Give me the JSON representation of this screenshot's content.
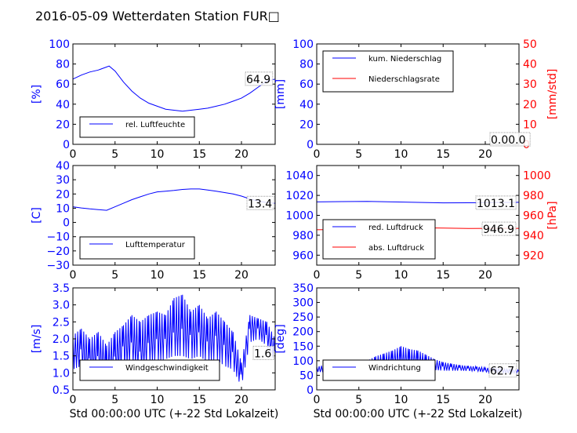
{
  "title": "2016-05-09 Wetterdaten Station FUR□",
  "xlabel": "Std 00:00:00 UTC (+-22 Std Lokalzeit)",
  "colors": {
    "primary": "#0000ff",
    "secondary": "#ff0000",
    "light": "#8080ff"
  },
  "chart_data": [
    {
      "type": "line",
      "ylabel": "[%]",
      "ylim": [
        0,
        100
      ],
      "yticks": [
        "0",
        "20",
        "40",
        "60",
        "80",
        "100"
      ],
      "xlim": [
        0,
        24
      ],
      "xticks": [
        "0",
        "5",
        "10",
        "15",
        "20"
      ],
      "last_value_label": "64.9",
      "legend": [
        "rel. Luftfeuchte"
      ],
      "legend_position": "lower-left",
      "series": [
        {
          "name": "rel. Luftfeuchte",
          "color": "#0000ff",
          "x": [
            0,
            1,
            2,
            3,
            4,
            4.3,
            5,
            6,
            7,
            8,
            9,
            10,
            11,
            12,
            13,
            14,
            15,
            16,
            17,
            18,
            19,
            20,
            21,
            22,
            23,
            24
          ],
          "y": [
            65,
            69,
            72,
            74,
            77,
            78,
            73,
            62,
            53,
            46,
            41,
            38,
            35,
            34,
            33,
            34,
            35,
            36,
            38,
            40,
            43,
            46,
            51,
            57,
            63,
            65
          ]
        }
      ]
    },
    {
      "type": "line",
      "ylabel": "[mm]",
      "ylim": [
        0,
        100
      ],
      "yticks": [
        "0",
        "20",
        "40",
        "60",
        "80",
        "100"
      ],
      "y2label": "[mm/std]",
      "y2lim": [
        0,
        50
      ],
      "y2ticks": [
        "0",
        "10",
        "20",
        "30",
        "40",
        "50"
      ],
      "xlim": [
        0,
        24
      ],
      "xticks": [
        "0",
        "5",
        "10",
        "15",
        "20"
      ],
      "last_value_label": "0.00.0",
      "legend": [
        "kum. Niederschlag",
        "Niederschlagsrate"
      ],
      "legend_position": "upper-left",
      "series": [
        {
          "name": "kum. Niederschlag",
          "color": "#0000ff",
          "x": [
            0,
            24
          ],
          "y": [
            0,
            0
          ]
        },
        {
          "name": "Niederschlagsrate",
          "color": "#ff0000",
          "axis": "right",
          "x": [
            0,
            24
          ],
          "y": [
            0,
            0
          ]
        }
      ]
    },
    {
      "type": "line",
      "ylabel": "[C]",
      "ylim": [
        -30,
        40
      ],
      "yticks": [
        "−30",
        "−20",
        "−10",
        "0",
        "10",
        "20",
        "30",
        "40"
      ],
      "xlim": [
        0,
        24
      ],
      "xticks": [
        "0",
        "5",
        "10",
        "15",
        "20"
      ],
      "last_value_label": "13.4",
      "legend": [
        "Lufttemperatur"
      ],
      "legend_position": "lower-left",
      "series": [
        {
          "name": "Lufttemperatur",
          "color": "#0000ff",
          "x": [
            0,
            1,
            2,
            3,
            4,
            5,
            6,
            7,
            8,
            9,
            10,
            11,
            12,
            13,
            14,
            15,
            16,
            17,
            18,
            19,
            20,
            21,
            22,
            23,
            24
          ],
          "y": [
            11,
            10.2,
            9.5,
            9,
            8.5,
            11,
            13.5,
            16,
            18,
            20,
            21.5,
            22,
            22.5,
            23.2,
            23.5,
            23.5,
            22.8,
            22,
            21,
            20,
            18.5,
            16.5,
            15,
            14,
            13.4
          ]
        }
      ]
    },
    {
      "type": "line",
      "y2label": "[hPa]",
      "ylim": [
        950,
        1050
      ],
      "yticks": [
        "960",
        "980",
        "1000",
        "1020",
        "1040"
      ],
      "y2lim": [
        910,
        1010
      ],
      "y2ticks": [
        "920",
        "940",
        "960",
        "980",
        "1000"
      ],
      "xlim": [
        0,
        24
      ],
      "xticks": [
        "0",
        "5",
        "10",
        "15",
        "20"
      ],
      "last_value_labels": [
        "1013.1",
        "946.9"
      ],
      "legend": [
        "red. Luftdruck",
        "abs. Luftdruck"
      ],
      "legend_position": "lower-left",
      "series": [
        {
          "name": "red. Luftdruck",
          "color": "#0000ff",
          "x": [
            0,
            3,
            6,
            9,
            12,
            15,
            18,
            21,
            24
          ],
          "y": [
            1013.5,
            1013.8,
            1014,
            1013.5,
            1013,
            1012.5,
            1012.6,
            1012.9,
            1013.1
          ]
        },
        {
          "name": "abs. Luftdruck",
          "color": "#ff0000",
          "axis": "right",
          "x": [
            0,
            3,
            6,
            9,
            12,
            15,
            18,
            21,
            24
          ],
          "y": [
            945.5,
            945.8,
            946.5,
            947.2,
            947.5,
            947.2,
            946.8,
            946.9,
            946.9
          ]
        }
      ]
    },
    {
      "type": "line",
      "ylabel": "[m/s]",
      "ylim": [
        0.5,
        3.5
      ],
      "yticks": [
        "0.5",
        "1.0",
        "1.5",
        "2.0",
        "2.5",
        "3.0",
        "3.5"
      ],
      "xlim": [
        0,
        24
      ],
      "xticks": [
        "0",
        "5",
        "10",
        "15",
        "20"
      ],
      "last_value_label": "1.6",
      "legend": [
        "Windgeschwindigkeit"
      ],
      "legend_position": "lower-left",
      "series": [
        {
          "name": "Windgeschwindigkeit",
          "color": "#0000ff",
          "x": [
            0,
            1,
            2,
            3,
            4,
            5,
            6,
            7,
            8,
            9,
            10,
            11,
            12,
            13,
            14,
            15,
            16,
            17,
            18,
            19,
            20,
            21,
            22,
            23,
            24
          ],
          "y": [
            1.6,
            1.7,
            1.4,
            1.5,
            1.2,
            1.5,
            1.8,
            1.9,
            1.6,
            1.9,
            2.0,
            2.0,
            2.2,
            2.3,
            2.1,
            2.2,
            1.9,
            2.1,
            1.8,
            1.6,
            0.9,
            2.4,
            2.3,
            2.1,
            1.6
          ],
          "high": [
            2.1,
            2.3,
            2.0,
            2.2,
            1.8,
            2.2,
            2.4,
            2.7,
            2.5,
            2.7,
            2.8,
            2.7,
            3.2,
            3.3,
            2.8,
            3.0,
            2.6,
            2.8,
            2.5,
            2.2,
            1.3,
            2.7,
            2.6,
            2.5,
            2.0
          ],
          "low": [
            1.1,
            1.2,
            0.9,
            1.0,
            0.8,
            0.9,
            1.1,
            1.3,
            1.1,
            1.3,
            1.3,
            1.4,
            1.5,
            1.5,
            1.4,
            1.5,
            1.3,
            1.4,
            1.2,
            1.1,
            0.6,
            1.9,
            2.0,
            1.8,
            1.3
          ]
        }
      ]
    },
    {
      "type": "line",
      "ylabel": "[deg]",
      "ylim": [
        0,
        350
      ],
      "yticks": [
        "0",
        "50",
        "100",
        "150",
        "200",
        "250",
        "300",
        "350"
      ],
      "xlim": [
        0,
        24
      ],
      "xticks": [
        "0",
        "5",
        "10",
        "15",
        "20"
      ],
      "last_value_label": "62.7",
      "legend": [
        "Windrichtung"
      ],
      "legend_position": "lower-left",
      "series": [
        {
          "name": "Windrichtung",
          "color": "#0000ff",
          "x": [
            0,
            1,
            2,
            3,
            4,
            5,
            6,
            7,
            8,
            9,
            10,
            11,
            12,
            13,
            14,
            15,
            16,
            17,
            18,
            19,
            20,
            21,
            22,
            23,
            24
          ],
          "y": [
            70,
            72,
            68,
            70,
            73,
            75,
            80,
            88,
            95,
            100,
            102,
            98,
            100,
            92,
            85,
            80,
            78,
            75,
            73,
            72,
            68,
            66,
            65,
            64,
            63
          ],
          "high": [
            80,
            85,
            78,
            82,
            88,
            92,
            100,
            115,
            125,
            135,
            150,
            140,
            135,
            120,
            105,
            95,
            90,
            85,
            82,
            80,
            76,
            74,
            72,
            70,
            68
          ],
          "low": [
            62,
            60,
            58,
            60,
            62,
            60,
            62,
            65,
            70,
            75,
            75,
            72,
            70,
            70,
            68,
            66,
            66,
            66,
            65,
            64,
            60,
            58,
            58,
            57,
            58
          ]
        }
      ]
    }
  ]
}
